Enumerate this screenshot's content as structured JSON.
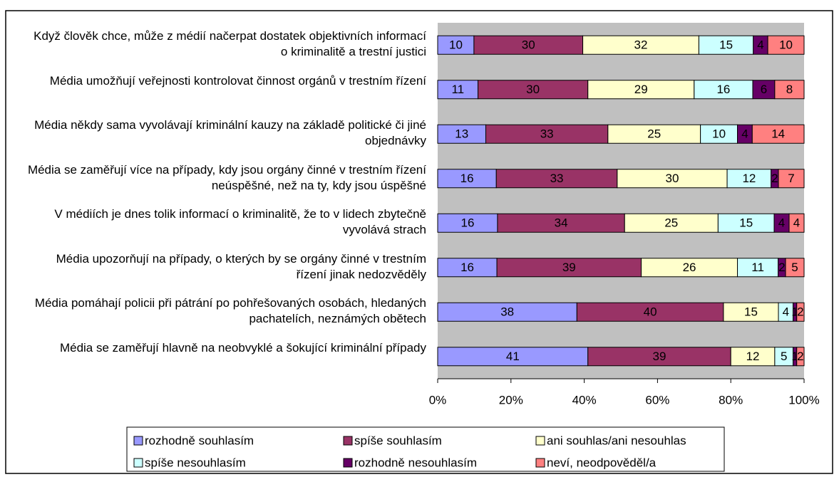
{
  "chart_data": {
    "type": "stacked-bar-horizontal",
    "stacking": "percent",
    "categories": [
      "Když člověk chce, může z médií načerpat dostatek objektivních informací o kriminalitě a trestní justici",
      "Média umožňují veřejnosti kontrolovat činnost  orgánů v trestním řízení",
      "Média někdy sama vyvolávají kriminální kauzy na základě politické  či jiné objednávky",
      "Média se zaměřují více na případy, kdy jsou orgány činné v trestním řízení neúspěšné, než na ty, kdy jsou úspěšné",
      "V médiích je dnes tolik informací o kriminalitě, že to v lidech zbytečně vyvolává strach",
      "Média upozorňují na případy, o kterých by se orgány činné v trestním řízení jinak nedozvěděly",
      "Média pomáhají policii při pátrání po pohřešovaných osobách, hledaných pachatelích, neznámých obětech",
      "Média se zaměřují hlavně na neobvyklé a šokující kriminální případy"
    ],
    "series": [
      {
        "name": "rozhodně souhlasím",
        "color": "#9999FF",
        "values": [
          10,
          11,
          13,
          16,
          16,
          16,
          38,
          41
        ]
      },
      {
        "name": "spíše souhlasím",
        "color": "#993366",
        "values": [
          30,
          30,
          33,
          33,
          34,
          39,
          40,
          39
        ]
      },
      {
        "name": "ani souhlas/ani nesouhlas",
        "color": "#FFFFCC",
        "values": [
          32,
          29,
          25,
          30,
          25,
          26,
          15,
          12
        ]
      },
      {
        "name": "spíše nesouhlasím",
        "color": "#CCFFFF",
        "values": [
          15,
          16,
          10,
          12,
          15,
          11,
          4,
          5
        ]
      },
      {
        "name": "rozhodně nesouhlasím",
        "color": "#660066",
        "values": [
          4,
          6,
          4,
          2,
          4,
          2,
          1,
          1
        ]
      },
      {
        "name": "neví, neodpověděl/a",
        "color": "#FF8080",
        "values": [
          10,
          8,
          14,
          7,
          4,
          5,
          2,
          2
        ]
      }
    ],
    "xlim": [
      0,
      100
    ],
    "xticks": [
      {
        "value": 0,
        "label": "0%"
      },
      {
        "value": 20,
        "label": "20%"
      },
      {
        "value": 40,
        "label": "40%"
      },
      {
        "value": 60,
        "label": "60%"
      },
      {
        "value": 80,
        "label": "80%"
      },
      {
        "value": 100,
        "label": "100%"
      }
    ],
    "plot_background": "#C0C0C0",
    "grid": false,
    "legend": "bottom"
  }
}
